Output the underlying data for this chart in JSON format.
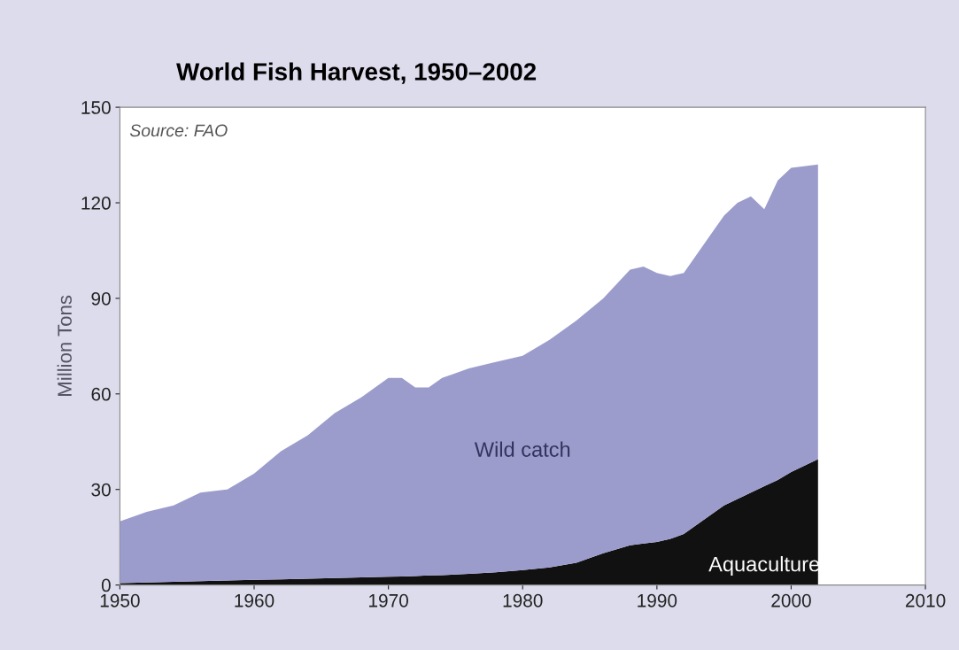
{
  "chart_data": {
    "type": "area",
    "title": "World Fish Harvest, 1950–2002",
    "ylabel": "Million Tons",
    "stacked": true,
    "x": [
      1950,
      1952,
      1954,
      1956,
      1958,
      1960,
      1962,
      1964,
      1966,
      1968,
      1970,
      1971,
      1972,
      1973,
      1974,
      1976,
      1978,
      1980,
      1982,
      1984,
      1986,
      1988,
      1989,
      1990,
      1991,
      1992,
      1994,
      1995,
      1996,
      1997,
      1998,
      1999,
      2000,
      2002
    ],
    "series": [
      {
        "name": "Aquaculture",
        "color": "#111111",
        "values": [
          0.6,
          0.8,
          1.0,
          1.2,
          1.4,
          1.6,
          1.8,
          2.0,
          2.2,
          2.4,
          2.6,
          2.7,
          2.8,
          3.0,
          3.1,
          3.5,
          4.0,
          4.7,
          5.5,
          7.0,
          10,
          12.5,
          13,
          13.5,
          14.5,
          16,
          22,
          25,
          27,
          29,
          31,
          33,
          35.5,
          39.5
        ]
      },
      {
        "name": "Wild catch",
        "color": "#9b9ccc",
        "values": [
          19.4,
          22.2,
          24.0,
          27.8,
          28.6,
          33.4,
          40.2,
          45.0,
          51.8,
          56.6,
          62.4,
          62.3,
          59.2,
          59.0,
          61.9,
          64.5,
          66.0,
          67.3,
          71.5,
          76.0,
          80.0,
          86.5,
          87.0,
          84.5,
          82.5,
          82.0,
          88.0,
          91.0,
          93.0,
          93.0,
          87.0,
          94.0,
          95.5,
          92.5
        ]
      }
    ],
    "xlim": [
      1950,
      2010
    ],
    "xticks": [
      1950,
      1960,
      1970,
      1980,
      1990,
      2000,
      2010
    ],
    "ylim": [
      0,
      150
    ],
    "yticks": [
      0,
      30,
      60,
      90,
      120,
      150
    ],
    "annotations": [
      "Source: FAO"
    ],
    "grid": false,
    "legend": false
  }
}
